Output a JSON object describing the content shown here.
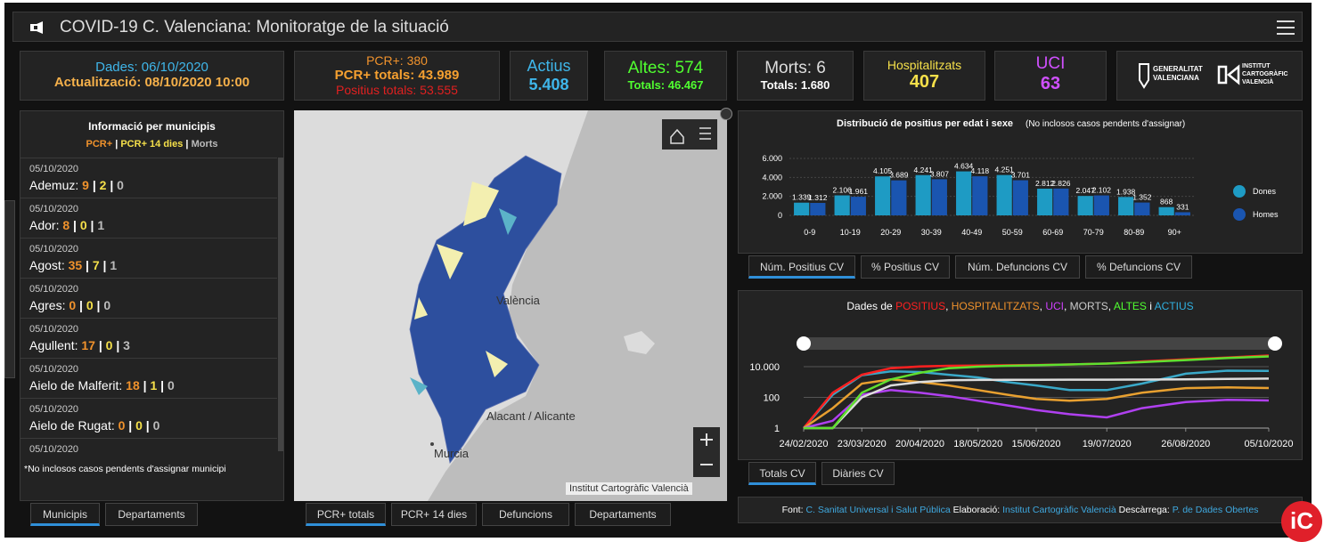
{
  "header": {
    "title": "COVID-19 C. Valenciana: Monitoratge de la situació"
  },
  "stats": {
    "dates": {
      "data": "Dades: 06/10/2020",
      "update": "Actualització: 08/10/2020 10:00"
    },
    "pcr": {
      "daily": "PCR+: 380",
      "total": "PCR+ totals: 43.989",
      "positives": "Positius totals: 53.555"
    },
    "active": {
      "label": "Actius",
      "value": "5.408"
    },
    "discharges": {
      "label": "Altes: 574",
      "total": "Totals: 46.467"
    },
    "deaths": {
      "label": "Morts: 6",
      "total": "Totals: 1.680"
    },
    "hospitalized": {
      "label": "Hospitalitzats",
      "value": "407"
    },
    "icu": {
      "label": "UCI",
      "value": "63"
    }
  },
  "logos": {
    "gva": [
      "GENERALITAT",
      "VALENCIANA"
    ],
    "icv": [
      "INSTITUT",
      "CARTOGRÀFIC",
      "VALENCIÀ"
    ]
  },
  "municipalities": {
    "title": "Informació per municipis",
    "legend": [
      {
        "text": "PCR+",
        "color": "#f0922c"
      },
      {
        "text": "PCR+ 14 dies",
        "color": "#f5e04a"
      },
      {
        "text": "Morts",
        "color": "#bbbbbb"
      }
    ],
    "items": [
      {
        "date": "05/10/2020",
        "name": "Ademuz",
        "pcr": "9",
        "pcr14": "2",
        "morts": "0"
      },
      {
        "date": "05/10/2020",
        "name": "Ador",
        "pcr": "8",
        "pcr14": "0",
        "morts": "1"
      },
      {
        "date": "05/10/2020",
        "name": "Agost",
        "pcr": "35",
        "pcr14": "7",
        "morts": "1"
      },
      {
        "date": "05/10/2020",
        "name": "Agres",
        "pcr": "0",
        "pcr14": "0",
        "morts": "0"
      },
      {
        "date": "05/10/2020",
        "name": "Agullent",
        "pcr": "17",
        "pcr14": "0",
        "morts": "3"
      },
      {
        "date": "05/10/2020",
        "name": "Aielo de Malferit",
        "pcr": "18",
        "pcr14": "1",
        "morts": "0"
      },
      {
        "date": "05/10/2020",
        "name": "Aielo de Rugat",
        "pcr": "0",
        "pcr14": "0",
        "morts": "0"
      },
      {
        "date": "05/10/2020"
      }
    ],
    "note": "*No inclosos casos pendents d'assignar municipi",
    "tabs": [
      "Municipis",
      "Departaments"
    ]
  },
  "map": {
    "labels": [
      "València",
      "Alacant / Alicante",
      "Murcia"
    ],
    "attribution": "Institut Cartogràfic Valencià",
    "tabs": [
      "PCR+ totals",
      "PCR+ 14 dies",
      "Defuncions",
      "Departaments"
    ]
  },
  "chart_data": [
    {
      "type": "bar",
      "title": "Distribució de positius per edat i sexe",
      "subtitle": "(No inclosos casos pendents d'assignar)",
      "categories": [
        "0-9",
        "10-19",
        "20-29",
        "30-39",
        "40-49",
        "50-59",
        "60-69",
        "70-79",
        "80-89",
        "90+"
      ],
      "series": [
        {
          "name": "Dones",
          "color": "#1e9bc4",
          "values": [
            1339,
            2106,
            4105,
            4241,
            4634,
            4251,
            2812,
            2047,
            1938,
            868
          ],
          "value_labels": [
            "1.339",
            "2.106",
            "4.105",
            "4.241",
            "4.634",
            "4.251",
            "2.812",
            "2.047",
            "1.938",
            "868"
          ]
        },
        {
          "name": "Homes",
          "color": "#1a55b0",
          "values": [
            1312,
            1961,
            3689,
            3807,
            4118,
            3701,
            2826,
            2102,
            1352,
            331
          ],
          "value_labels": [
            "1.312",
            "1.961",
            "3.689",
            "3.807",
            "4.118",
            "3.701",
            "2.826",
            "2.102",
            "1.352",
            "331"
          ]
        }
      ],
      "ylim": [
        0,
        6000
      ],
      "yticks": [
        0,
        {
          "value": 2000,
          "label": "2.000"
        },
        {
          "value": 4000,
          "label": "4.000"
        },
        {
          "value": 6000,
          "label": "6.000"
        }
      ],
      "grid": true,
      "legend": "right",
      "tabs": [
        "Núm. Positius CV",
        "% Positius CV",
        "Núm. Defuncions CV",
        "% Defuncions CV"
      ]
    },
    {
      "type": "line",
      "title_parts": [
        {
          "text": "Dades de ",
          "color": "#ffffff"
        },
        {
          "text": "POSITIUS",
          "color": "#ff2020"
        },
        {
          "text": ", ",
          "color": "#ffffff"
        },
        {
          "text": "HOSPITALITZATS",
          "color": "#f0922c"
        },
        {
          "text": ", ",
          "color": "#ffffff"
        },
        {
          "text": "UCI",
          "color": "#d040ff"
        },
        {
          "text": ", ",
          "color": "#ffffff"
        },
        {
          "text": "MORTS",
          "color": "#cccccc"
        },
        {
          "text": ", ",
          "color": "#ffffff"
        },
        {
          "text": "ALTES",
          "color": "#50ff30"
        },
        {
          "text": " i ",
          "color": "#ffffff"
        },
        {
          "text": "ACTIUS",
          "color": "#30b0e0"
        }
      ],
      "x": [
        "24/02/2020",
        "09/03/2020",
        "23/03/2020",
        "06/04/2020",
        "20/04/2020",
        "04/05/2020",
        "18/05/2020",
        "01/06/2020",
        "15/06/2020",
        "01/07/2020",
        "19/07/2020",
        "05/08/2020",
        "26/08/2020",
        "15/09/2020",
        "05/10/2020"
      ],
      "series": [
        {
          "name": "ACTIUS",
          "color": "#3aa9c9",
          "values": [
            1,
            150,
            2800,
            5000,
            4500,
            3000,
            2000,
            1000,
            600,
            300,
            300,
            800,
            3500,
            5500,
            5408
          ]
        },
        {
          "name": "POSITIUS",
          "color": "#ff2020",
          "values": [
            1,
            200,
            3000,
            8000,
            10500,
            11500,
            12000,
            12500,
            13000,
            14000,
            16000,
            22000,
            30000,
            40000,
            53555
          ]
        },
        {
          "name": "HOSPITALITZATS",
          "color": "#e8a030",
          "values": [
            1,
            20,
            800,
            1500,
            1000,
            600,
            300,
            150,
            80,
            60,
            80,
            200,
            400,
            450,
            407
          ]
        },
        {
          "name": "UCI",
          "color": "#b040f0",
          "values": [
            1,
            3,
            150,
            300,
            200,
            120,
            60,
            30,
            15,
            8,
            5,
            20,
            50,
            70,
            63
          ]
        },
        {
          "name": "MORTS",
          "color": "#dddddd",
          "values": [
            1,
            1,
            100,
            600,
            1000,
            1300,
            1380,
            1400,
            1420,
            1430,
            1440,
            1460,
            1500,
            1600,
            1680
          ]
        },
        {
          "name": "ALTES",
          "color": "#60e030",
          "values": [
            1,
            1,
            200,
            1500,
            4000,
            8000,
            10000,
            11500,
            12500,
            14000,
            16000,
            20000,
            27000,
            37000,
            46467
          ]
        }
      ],
      "log_scale": true,
      "ylim": [
        1,
        50000
      ],
      "yticks": [
        1,
        100,
        {
          "value": 10000,
          "label": "10.000"
        }
      ],
      "xlim": [
        "24/02/2020",
        "05/10/2020"
      ],
      "xticks": [
        "24/02/2020",
        "23/03/2020",
        "20/04/2020",
        "18/05/2020",
        "15/06/2020",
        "19/07/2020",
        "26/08/2020",
        "05/10/2020"
      ],
      "grid": true,
      "tabs": [
        "Totals CV",
        "Diàries CV"
      ]
    }
  ],
  "footer": [
    {
      "text": "Font: ",
      "color": "#ffffff"
    },
    {
      "text": "C. Sanitat Universal i Salut Pública",
      "color": "#3fa9e0"
    },
    {
      "text": " Elaboració: ",
      "color": "#ffffff"
    },
    {
      "text": "Institut Cartogràfic Valencià",
      "color": "#3fa9e0"
    },
    {
      "text": " Descàrrega: ",
      "color": "#ffffff"
    },
    {
      "text": "P. de Dades Obertes",
      "color": "#3fa9e0"
    }
  ],
  "badge": "iC"
}
